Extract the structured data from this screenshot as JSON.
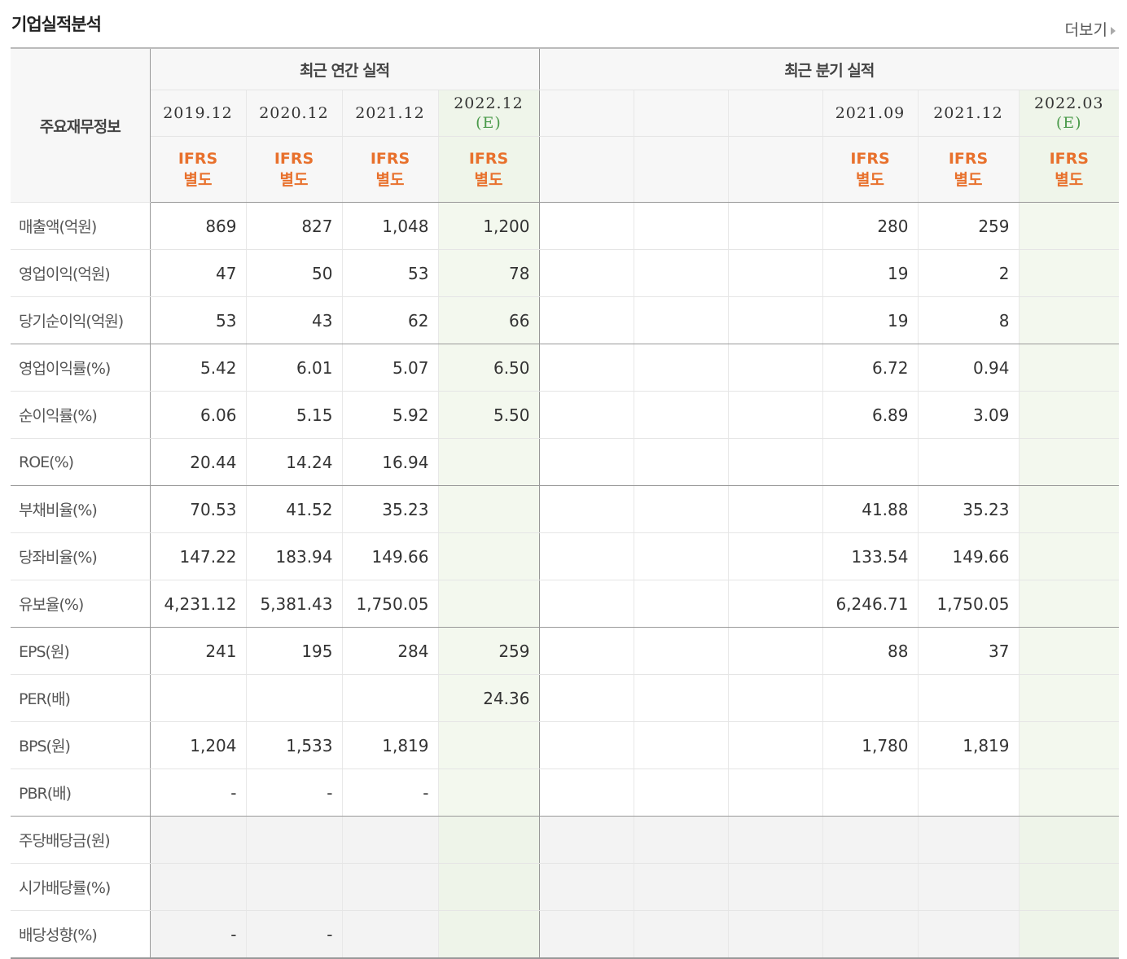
{
  "title": "기업실적분석",
  "more_label": "더보기",
  "header": {
    "row_label": "주요재무정보",
    "annual_group": "최근 연간 실적",
    "quarter_group": "최근 분기 실적",
    "annual_periods": [
      {
        "period": "2019.12",
        "est": "",
        "basis1": "IFRS",
        "basis2": "별도"
      },
      {
        "period": "2020.12",
        "est": "",
        "basis1": "IFRS",
        "basis2": "별도"
      },
      {
        "period": "2021.12",
        "est": "",
        "basis1": "IFRS",
        "basis2": "별도"
      },
      {
        "period": "2022.12",
        "est": "(E)",
        "basis1": "IFRS",
        "basis2": "별도"
      }
    ],
    "quarter_periods": [
      {
        "period": "",
        "est": "",
        "basis1": "",
        "basis2": ""
      },
      {
        "period": "",
        "est": "",
        "basis1": "",
        "basis2": ""
      },
      {
        "period": "",
        "est": "",
        "basis1": "",
        "basis2": ""
      },
      {
        "period": "2021.09",
        "est": "",
        "basis1": "IFRS",
        "basis2": "별도"
      },
      {
        "period": "2021.12",
        "est": "",
        "basis1": "IFRS",
        "basis2": "별도"
      },
      {
        "period": "2022.03",
        "est": "(E)",
        "basis1": "IFRS",
        "basis2": "별도"
      }
    ]
  },
  "rows": [
    {
      "label": "매출액(억원)",
      "annual": [
        "869",
        "827",
        "1,048",
        "1,200"
      ],
      "quarter": [
        "",
        "",
        "",
        "280",
        "259",
        ""
      ]
    },
    {
      "label": "영업이익(억원)",
      "annual": [
        "47",
        "50",
        "53",
        "78"
      ],
      "quarter": [
        "",
        "",
        "",
        "19",
        "2",
        ""
      ]
    },
    {
      "label": "당기순이익(억원)",
      "annual": [
        "53",
        "43",
        "62",
        "66"
      ],
      "quarter": [
        "",
        "",
        "",
        "19",
        "8",
        ""
      ]
    },
    {
      "label": "영업이익률(%)",
      "annual": [
        "5.42",
        "6.01",
        "5.07",
        "6.50"
      ],
      "quarter": [
        "",
        "",
        "",
        "6.72",
        "0.94",
        ""
      ]
    },
    {
      "label": "순이익률(%)",
      "annual": [
        "6.06",
        "5.15",
        "5.92",
        "5.50"
      ],
      "quarter": [
        "",
        "",
        "",
        "6.89",
        "3.09",
        ""
      ]
    },
    {
      "label": "ROE(%)",
      "annual": [
        "20.44",
        "14.24",
        "16.94",
        ""
      ],
      "quarter": [
        "",
        "",
        "",
        "",
        "",
        ""
      ]
    },
    {
      "label": "부채비율(%)",
      "annual": [
        "70.53",
        "41.52",
        "35.23",
        ""
      ],
      "quarter": [
        "",
        "",
        "",
        "41.88",
        "35.23",
        ""
      ]
    },
    {
      "label": "당좌비율(%)",
      "annual": [
        "147.22",
        "183.94",
        "149.66",
        ""
      ],
      "quarter": [
        "",
        "",
        "",
        "133.54",
        "149.66",
        ""
      ]
    },
    {
      "label": "유보율(%)",
      "annual": [
        "4,231.12",
        "5,381.43",
        "1,750.05",
        ""
      ],
      "quarter": [
        "",
        "",
        "",
        "6,246.71",
        "1,750.05",
        ""
      ]
    },
    {
      "label": "EPS(원)",
      "annual": [
        "241",
        "195",
        "284",
        "259"
      ],
      "quarter": [
        "",
        "",
        "",
        "88",
        "37",
        ""
      ]
    },
    {
      "label": "PER(배)",
      "annual": [
        "",
        "",
        "",
        "24.36"
      ],
      "quarter": [
        "",
        "",
        "",
        "",
        "",
        ""
      ]
    },
    {
      "label": "BPS(원)",
      "annual": [
        "1,204",
        "1,533",
        "1,819",
        ""
      ],
      "quarter": [
        "",
        "",
        "",
        "1,780",
        "1,819",
        ""
      ]
    },
    {
      "label": "PBR(배)",
      "annual": [
        "-",
        "-",
        "-",
        ""
      ],
      "quarter": [
        "",
        "",
        "",
        "",
        "",
        ""
      ]
    },
    {
      "label": "주당배당금(원)",
      "annual": [
        "",
        "",
        "",
        ""
      ],
      "quarter": [
        "",
        "",
        "",
        "",
        "",
        ""
      ]
    },
    {
      "label": "시가배당률(%)",
      "annual": [
        "",
        "",
        "",
        ""
      ],
      "quarter": [
        "",
        "",
        "",
        "",
        "",
        ""
      ]
    },
    {
      "label": "배당성향(%)",
      "annual": [
        "-",
        "-",
        "",
        ""
      ],
      "quarter": [
        "",
        "",
        "",
        "",
        "",
        ""
      ]
    }
  ]
}
